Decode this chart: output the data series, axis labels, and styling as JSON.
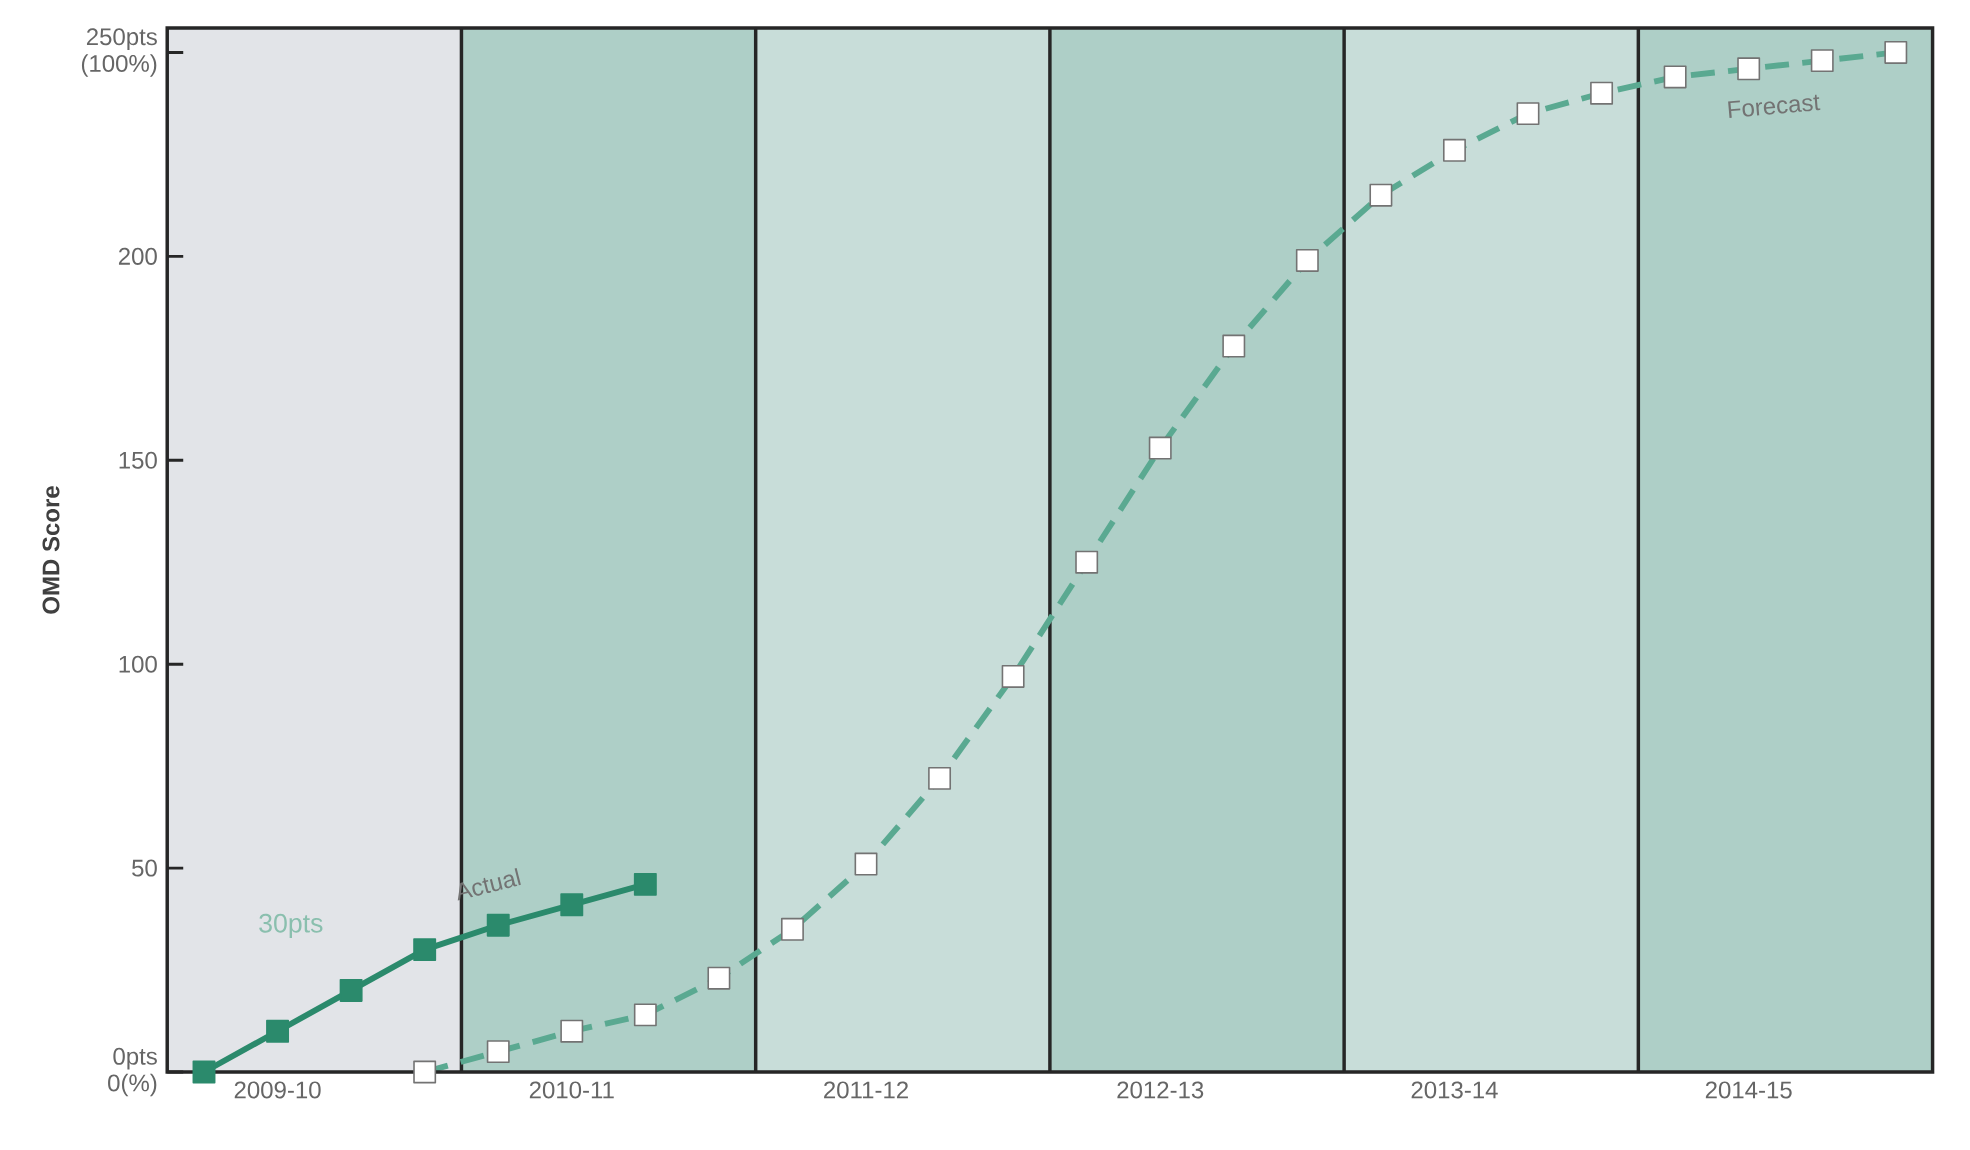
{
  "chart_data": {
    "type": "line",
    "ylabel": "OMD Score",
    "categories": [
      null,
      "2009-10",
      null,
      null,
      null,
      "2010-11",
      null,
      null,
      null,
      "2011-12",
      null,
      null,
      null,
      "2012-13",
      null,
      null,
      null,
      "2013-14",
      null,
      null,
      null,
      "2014-15",
      null,
      null
    ],
    "ylim": [
      0,
      256
    ],
    "yticks": [
      {
        "value": 0,
        "label": "0pts 0(%)"
      },
      50,
      100,
      150,
      200,
      {
        "value": 250,
        "label": "250pts (100%)"
      }
    ],
    "series": [
      {
        "name": "Actual",
        "color": "#2b8a6c",
        "marker": "square",
        "line_style": "solid",
        "values": [
          0,
          10,
          20,
          30,
          36,
          41,
          46,
          null,
          null,
          null,
          null,
          null,
          null,
          null,
          null,
          null,
          null,
          null,
          null,
          null,
          null,
          null,
          null,
          null
        ]
      },
      {
        "name": "Forecast",
        "color": "#5aa991",
        "marker": "square",
        "line_style": "dashed",
        "values": [
          null,
          null,
          null,
          0,
          5,
          10,
          14,
          23,
          35,
          51,
          72,
          97,
          125,
          153,
          178,
          199,
          215,
          226,
          235,
          240,
          244,
          246,
          248,
          250
        ]
      }
    ],
    "annotations": [
      "30pts"
    ],
    "legend": false,
    "grid": "x"
  }
}
